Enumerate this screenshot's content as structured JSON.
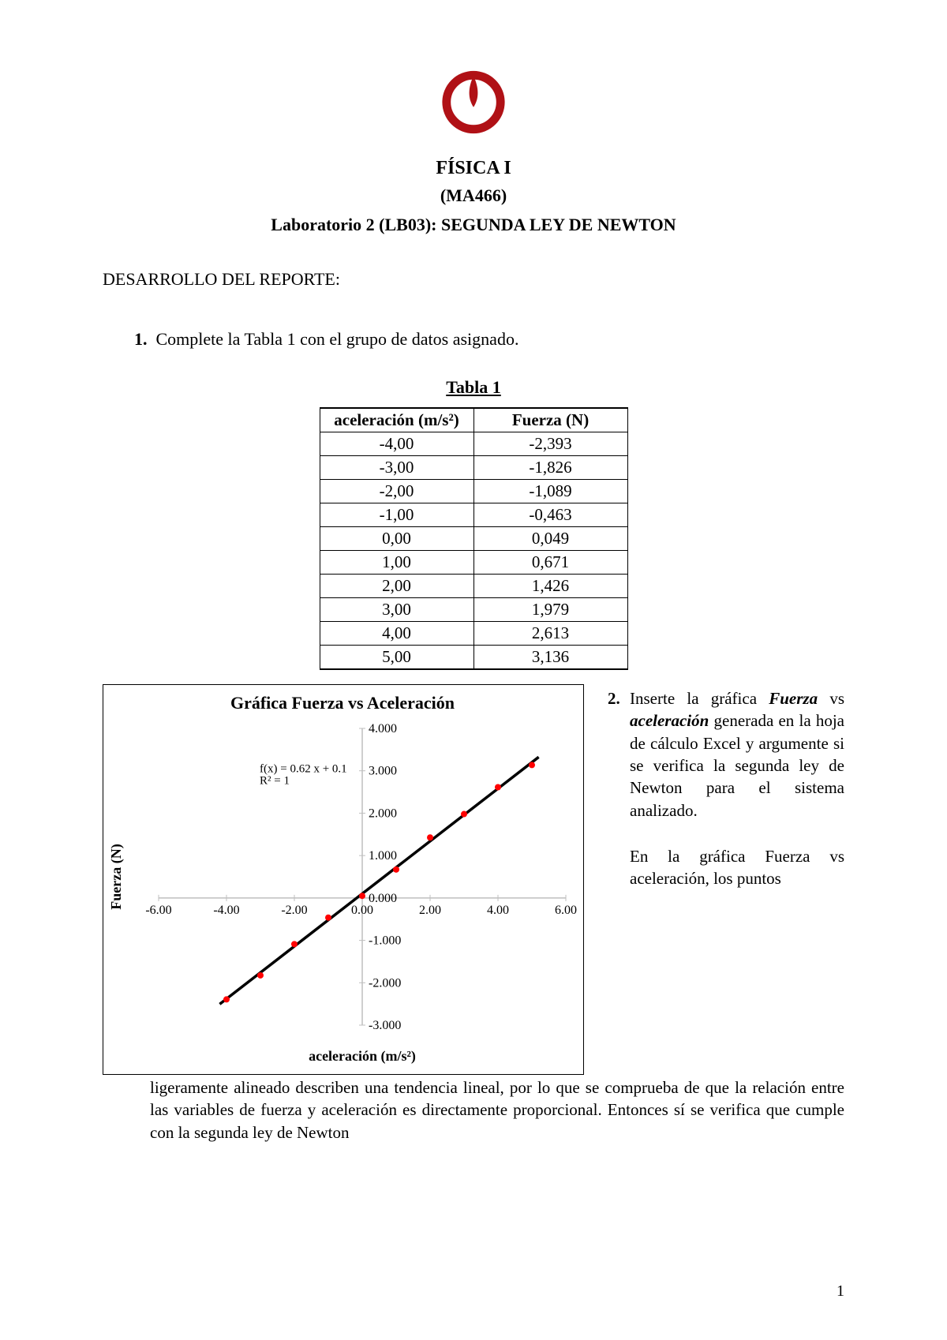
{
  "header": {
    "course": "FÍSICA I",
    "code": "(MA466)",
    "labtitle": "Laboratorio 2 (LB03): SEGUNDA LEY DE NEWTON"
  },
  "section_label": "DESARROLLO DEL REPORTE:",
  "q1": {
    "num": "1.",
    "text": "Complete la Tabla 1 con el grupo de datos asignado."
  },
  "table": {
    "caption": "Tabla 1",
    "columns": [
      "aceleración (m/s²)",
      "Fuerza (N)"
    ],
    "rows": [
      [
        "-4,00",
        "-2,393"
      ],
      [
        "-3,00",
        "-1,826"
      ],
      [
        "-2,00",
        "-1,089"
      ],
      [
        "-1,00",
        "-0,463"
      ],
      [
        "0,00",
        "0,049"
      ],
      [
        "1,00",
        "0,671"
      ],
      [
        "2,00",
        "1,426"
      ],
      [
        "3,00",
        "1,979"
      ],
      [
        "4,00",
        "2,613"
      ],
      [
        "5,00",
        "3,136"
      ]
    ]
  },
  "chart": {
    "type": "scatter-with-trendline",
    "title": "Gráfica Fuerza vs Aceleración",
    "title_fontsize": 22,
    "xlabel": "aceleración (m/s²)",
    "ylabel": "Fuerza (N)",
    "label_fontsize": 18,
    "xlim": [
      -6,
      6
    ],
    "ylim": [
      -3,
      4
    ],
    "xtick_step": 2,
    "ytick_step": 1,
    "xticks_labels": [
      "-6.00",
      "-4.00",
      "-2.00",
      "0.00",
      "2.00",
      "4.00",
      "6.00"
    ],
    "yticks_labels": [
      "-3.000",
      "-2.000",
      "-1.000",
      "0.000",
      "1.000",
      "2.000",
      "3.000",
      "4.000"
    ],
    "grid_color": "#bfbfbf",
    "axis_color": "#bfbfbf",
    "background_color": "#ffffff",
    "marker_color": "#ff0000",
    "marker_radius": 4,
    "trend_color": "#000000",
    "trend_width": 3.5,
    "eq_line1": "f(x) = 0.62 x + 0.1",
    "eq_line2": "R² = 1",
    "eq_overlay_tick": "3.000",
    "points_xy": [
      [
        -4,
        -2.393
      ],
      [
        -3,
        -1.826
      ],
      [
        -2,
        -1.089
      ],
      [
        -1,
        -0.463
      ],
      [
        0,
        0.049
      ],
      [
        1,
        0.671
      ],
      [
        2,
        1.426
      ],
      [
        3,
        1.979
      ],
      [
        4,
        2.613
      ],
      [
        5,
        3.136
      ]
    ],
    "trend_slope": 0.62,
    "trend_intercept": 0.1
  },
  "q2": {
    "num": "2.",
    "right_para": "Inserte la gráfica Fuerza vs aceleración generada en la hoja de cálculo Excel y argumente si se verifica la segunda ley de Newton para el sistema analizado.",
    "right_tail": "En la gráfica Fuerza vs aceleración, los puntos",
    "below": "ligeramente alineado describen una tendencia lineal, por lo que se comprueba de que la relación entre las variables de fuerza y aceleración es directamente proporcional. Entonces sí se verifica que cumple con la segunda ley de Newton"
  },
  "pagenum": "1",
  "logo": {
    "color": "#b01116"
  }
}
